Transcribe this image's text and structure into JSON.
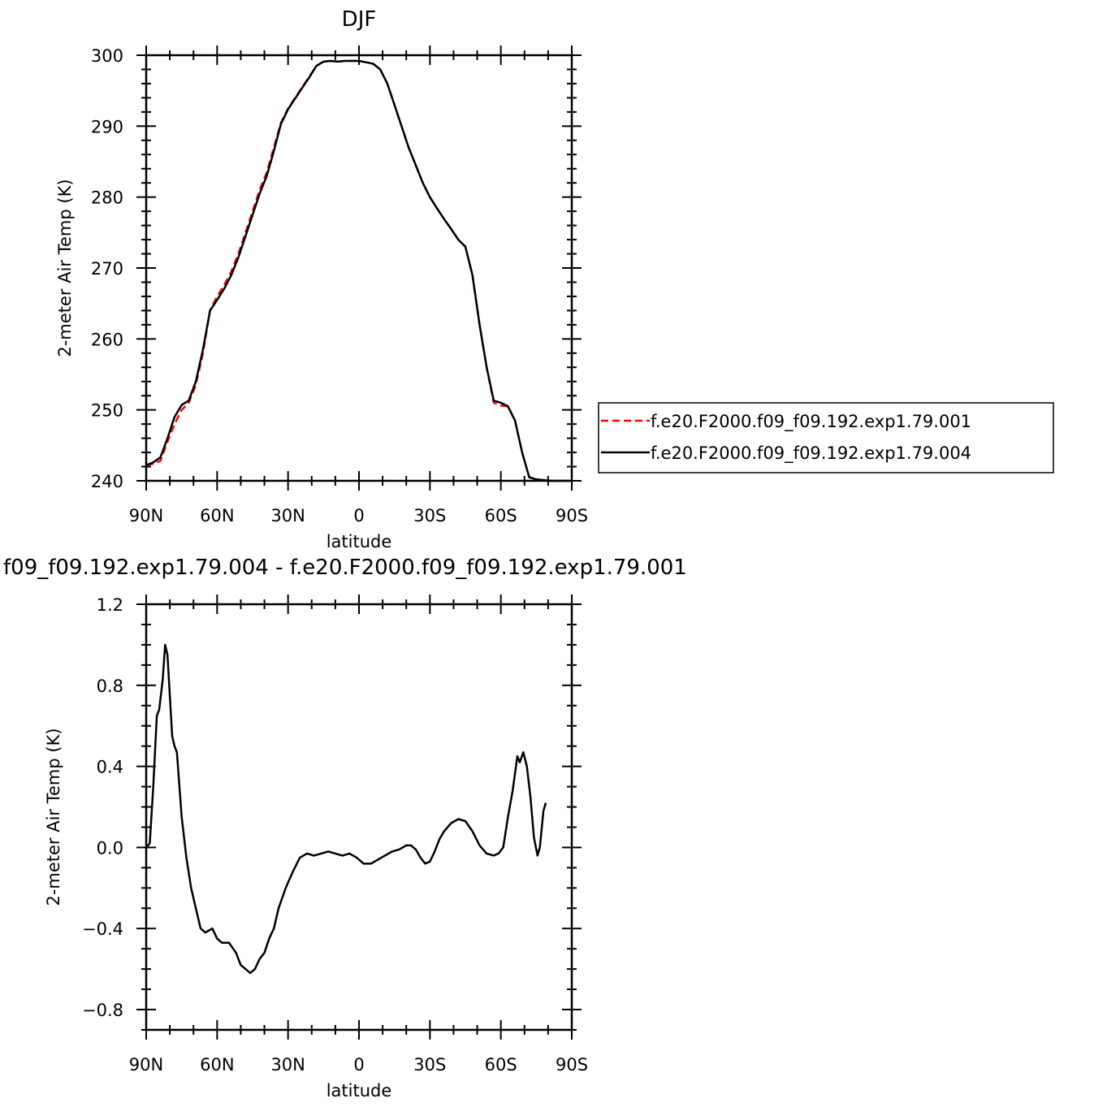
{
  "chart_data": [
    {
      "type": "line",
      "title": "DJF",
      "xlabel": "latitude",
      "ylabel": "2-meter Air Temp (K)",
      "xlim": [
        90,
        -90
      ],
      "ylim": [
        240,
        300
      ],
      "x_tick_values": [
        90,
        60,
        30,
        0,
        -30,
        -60,
        -90
      ],
      "x_tick_labels": [
        "90N",
        "60N",
        "30N",
        "0",
        "30S",
        "60S",
        "90S"
      ],
      "y_tick_values": [
        240,
        250,
        260,
        270,
        280,
        290,
        300
      ],
      "y_tick_labels": [
        "240",
        "250",
        "260",
        "270",
        "280",
        "290",
        "300"
      ],
      "legend_position": "right",
      "series": [
        {
          "name": "f.e20.F2000.f09_f09.192.exp1.79.001",
          "color": "#ff0000",
          "style": "dashed",
          "points": [
            [
              90,
              242.2
            ],
            [
              87,
              242.4
            ],
            [
              84,
              242.8
            ],
            [
              81,
              245.5
            ],
            [
              78,
              248.0
            ],
            [
              75,
              250.0
            ],
            [
              72,
              251.0
            ],
            [
              69,
              253.5
            ],
            [
              66,
              258.0
            ],
            [
              63,
              264.0
            ],
            [
              60,
              266.0
            ],
            [
              57,
              267.6
            ],
            [
              54,
              269.5
            ],
            [
              51,
              272.0
            ],
            [
              48,
              275.0
            ],
            [
              45,
              278.0
            ],
            [
              42,
              281.0
            ],
            [
              39,
              283.5
            ],
            [
              36,
              287.0
            ],
            [
              33,
              290.5
            ],
            [
              30,
              292.5
            ],
            [
              27,
              294.0
            ],
            [
              24,
              295.5
            ],
            [
              21,
              297.0
            ],
            [
              18,
              298.5
            ],
            [
              15,
              299.1
            ],
            [
              12,
              299.2
            ],
            [
              9,
              299.1
            ],
            [
              6,
              299.2
            ],
            [
              3,
              299.2
            ],
            [
              0,
              299.2
            ],
            [
              -3,
              299.0
            ],
            [
              -6,
              298.8
            ],
            [
              -9,
              298.0
            ],
            [
              -12,
              296.0
            ],
            [
              -15,
              293.0
            ],
            [
              -18,
              290.0
            ],
            [
              -21,
              287.0
            ],
            [
              -24,
              284.5
            ],
            [
              -27,
              282.0
            ],
            [
              -30,
              280.0
            ],
            [
              -33,
              278.4
            ],
            [
              -36,
              276.9
            ],
            [
              -39,
              275.5
            ],
            [
              -42,
              274.0
            ],
            [
              -45,
              273.0
            ],
            [
              -48,
              269.0
            ],
            [
              -51,
              262.0
            ],
            [
              -54,
              256.0
            ],
            [
              -57,
              251.0
            ],
            [
              -60,
              250.6
            ],
            [
              -63,
              250.5
            ],
            [
              -66,
              248.5
            ],
            [
              -69,
              244.0
            ],
            [
              -72,
              240.5
            ],
            [
              -75,
              240.2
            ],
            [
              -78,
              240.1
            ],
            [
              -81,
              240.0
            ],
            [
              -84,
              240.0
            ],
            [
              -87,
              240.0
            ],
            [
              -90,
              240.0
            ]
          ]
        },
        {
          "name": "f.e20.F2000.f09_f09.192.exp1.79.004",
          "color": "#000000",
          "style": "solid",
          "points": [
            [
              90,
              242.2
            ],
            [
              87,
              242.6
            ],
            [
              84,
              243.3
            ],
            [
              81,
              246.0
            ],
            [
              78,
              249.0
            ],
            [
              75,
              250.7
            ],
            [
              72,
              251.3
            ],
            [
              69,
              254.0
            ],
            [
              66,
              258.5
            ],
            [
              63,
              264.0
            ],
            [
              60,
              265.5
            ],
            [
              57,
              267.1
            ],
            [
              54,
              269.0
            ],
            [
              51,
              271.5
            ],
            [
              48,
              274.5
            ],
            [
              45,
              277.5
            ],
            [
              42,
              280.5
            ],
            [
              39,
              283.0
            ],
            [
              36,
              286.5
            ],
            [
              33,
              290.3
            ],
            [
              30,
              292.4
            ],
            [
              27,
              293.9
            ],
            [
              24,
              295.4
            ],
            [
              21,
              296.9
            ],
            [
              18,
              298.5
            ],
            [
              15,
              299.1
            ],
            [
              12,
              299.2
            ],
            [
              9,
              299.1
            ],
            [
              6,
              299.2
            ],
            [
              3,
              299.2
            ],
            [
              0,
              299.2
            ],
            [
              -3,
              299.0
            ],
            [
              -6,
              298.8
            ],
            [
              -9,
              298.0
            ],
            [
              -12,
              296.0
            ],
            [
              -15,
              293.0
            ],
            [
              -18,
              290.0
            ],
            [
              -21,
              287.0
            ],
            [
              -24,
              284.5
            ],
            [
              -27,
              282.0
            ],
            [
              -30,
              280.0
            ],
            [
              -33,
              278.4
            ],
            [
              -36,
              276.9
            ],
            [
              -39,
              275.5
            ],
            [
              -42,
              274.0
            ],
            [
              -45,
              273.0
            ],
            [
              -48,
              269.0
            ],
            [
              -51,
              262.0
            ],
            [
              -54,
              256.0
            ],
            [
              -57,
              251.3
            ],
            [
              -60,
              251.0
            ],
            [
              -63,
              250.5
            ],
            [
              -66,
              248.5
            ],
            [
              -69,
              244.0
            ],
            [
              -72,
              240.5
            ],
            [
              -75,
              240.2
            ],
            [
              -78,
              240.1
            ],
            [
              -81,
              240.0
            ],
            [
              -84,
              240.0
            ],
            [
              -87,
              240.0
            ],
            [
              -90,
              240.0
            ]
          ]
        }
      ]
    },
    {
      "type": "line",
      "title": "f09_f09.192.exp1.79.004 - f.e20.F2000.f09_f09.192.exp1.79.001",
      "xlabel": "latitude",
      "ylabel": "2-meter Air Temp (K)",
      "xlim": [
        90,
        -90
      ],
      "ylim": [
        -0.9,
        1.2
      ],
      "x_tick_values": [
        90,
        60,
        30,
        0,
        -30,
        -60,
        -90
      ],
      "x_tick_labels": [
        "90N",
        "60N",
        "30N",
        "0",
        "30S",
        "60S",
        "90S"
      ],
      "y_tick_values": [
        -0.8,
        -0.4,
        0.0,
        0.4,
        0.8,
        1.2
      ],
      "y_tick_labels": [
        "−0.8",
        "−0.4",
        "0.0",
        "0.4",
        "0.8",
        "1.2"
      ],
      "series": [
        {
          "color": "#000000",
          "style": "solid",
          "points": [
            [
              90,
              0.0
            ],
            [
              88.5,
              0.02
            ],
            [
              87,
              0.3
            ],
            [
              85.5,
              0.65
            ],
            [
              84.5,
              0.68
            ],
            [
              83,
              0.83
            ],
            [
              82,
              1.0
            ],
            [
              81,
              0.95
            ],
            [
              80,
              0.75
            ],
            [
              79,
              0.55
            ],
            [
              78,
              0.5
            ],
            [
              77,
              0.47
            ],
            [
              75,
              0.15
            ],
            [
              73,
              -0.05
            ],
            [
              71,
              -0.2
            ],
            [
              69,
              -0.3
            ],
            [
              67,
              -0.4
            ],
            [
              65,
              -0.42
            ],
            [
              62,
              -0.4
            ],
            [
              60,
              -0.45
            ],
            [
              58,
              -0.47
            ],
            [
              55,
              -0.47
            ],
            [
              52,
              -0.52
            ],
            [
              50,
              -0.58
            ],
            [
              48,
              -0.6
            ],
            [
              46,
              -0.62
            ],
            [
              44,
              -0.6
            ],
            [
              42,
              -0.55
            ],
            [
              40,
              -0.52
            ],
            [
              38,
              -0.45
            ],
            [
              36,
              -0.4
            ],
            [
              34,
              -0.3
            ],
            [
              31,
              -0.2
            ],
            [
              28,
              -0.12
            ],
            [
              25,
              -0.05
            ],
            [
              22,
              -0.03
            ],
            [
              19,
              -0.04
            ],
            [
              16,
              -0.03
            ],
            [
              13,
              -0.02
            ],
            [
              10,
              -0.03
            ],
            [
              7,
              -0.04
            ],
            [
              4,
              -0.03
            ],
            [
              1,
              -0.05
            ],
            [
              -2,
              -0.08
            ],
            [
              -5,
              -0.08
            ],
            [
              -8,
              -0.06
            ],
            [
              -11,
              -0.04
            ],
            [
              -14,
              -0.02
            ],
            [
              -17,
              -0.01
            ],
            [
              -20,
              0.01
            ],
            [
              -22,
              0.01
            ],
            [
              -24,
              -0.01
            ],
            [
              -26,
              -0.05
            ],
            [
              -28,
              -0.08
            ],
            [
              -30,
              -0.07
            ],
            [
              -32,
              -0.02
            ],
            [
              -34,
              0.04
            ],
            [
              -36,
              0.08
            ],
            [
              -39,
              0.12
            ],
            [
              -42,
              0.14
            ],
            [
              -45,
              0.13
            ],
            [
              -48,
              0.08
            ],
            [
              -51,
              0.01
            ],
            [
              -54,
              -0.03
            ],
            [
              -57,
              -0.04
            ],
            [
              -59,
              -0.03
            ],
            [
              -61,
              0.0
            ],
            [
              -63,
              0.15
            ],
            [
              -65,
              0.28
            ],
            [
              -67,
              0.45
            ],
            [
              -68,
              0.42
            ],
            [
              -69.5,
              0.47
            ],
            [
              -71,
              0.4
            ],
            [
              -72.5,
              0.25
            ],
            [
              -74,
              0.05
            ],
            [
              -75.5,
              -0.04
            ],
            [
              -76.5,
              0.0
            ],
            [
              -78,
              0.18
            ],
            [
              -79,
              0.22
            ]
          ]
        }
      ]
    }
  ]
}
